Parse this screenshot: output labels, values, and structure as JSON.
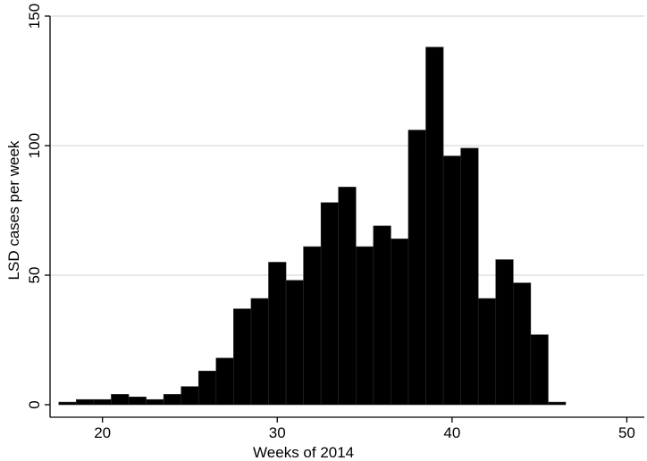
{
  "chart_data": {
    "type": "bar",
    "xlabel": "Weeks of 2014",
    "ylabel": "LSD cases per week",
    "xlim": [
      17,
      51
    ],
    "ylim": [
      0,
      150
    ],
    "x_ticks": [
      20,
      30,
      40,
      50
    ],
    "y_ticks": [
      0,
      50,
      100,
      150
    ],
    "grid": true,
    "bar_color": "#000000",
    "bar_outline_color": "#2a2a2a",
    "grid_color": "#d9d9d9",
    "x": [
      18,
      19,
      20,
      21,
      22,
      23,
      24,
      25,
      26,
      27,
      28,
      29,
      30,
      31,
      32,
      33,
      34,
      35,
      36,
      37,
      38,
      39,
      40,
      41,
      42,
      43,
      44,
      45,
      46
    ],
    "values": [
      1,
      2,
      2,
      4,
      3,
      2,
      4,
      7,
      13,
      18,
      37,
      41,
      55,
      48,
      61,
      78,
      84,
      61,
      69,
      64,
      106,
      138,
      96,
      99,
      41,
      56,
      47,
      27,
      1
    ]
  }
}
